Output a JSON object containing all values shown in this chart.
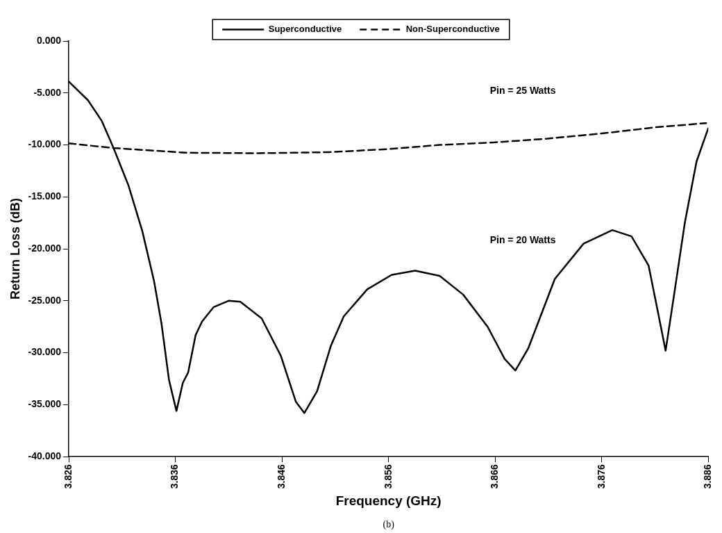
{
  "chart_data": {
    "type": "line",
    "xlabel": "Frequency (GHz)",
    "ylabel": "Return Loss (dB)",
    "xlim": [
      3.826,
      3.886
    ],
    "xticks": [
      3.826,
      3.836,
      3.846,
      3.856,
      3.866,
      3.876,
      3.886
    ],
    "ylim": [
      -40,
      0
    ],
    "yticks": [
      {
        "value": 0,
        "label": "0.000"
      },
      {
        "value": -5,
        "label": "-5.000"
      },
      {
        "value": -10,
        "label": "-10.000"
      },
      {
        "value": -15,
        "label": "-15.000"
      },
      {
        "value": -20,
        "label": "-20.000"
      },
      {
        "value": -25,
        "label": "-25.000"
      },
      {
        "value": -30,
        "label": "-30.000"
      },
      {
        "value": -35,
        "label": "-35.000"
      },
      {
        "value": -40,
        "label": "-40.000"
      }
    ],
    "grid": false,
    "legend": "top",
    "marker": "none",
    "series": [
      {
        "name": "Superconductive",
        "color": "#000000",
        "line_style": "solid",
        "x": [
          3.826,
          3.8278,
          3.8291,
          3.8302,
          3.8316,
          3.8329,
          3.834,
          3.8347,
          3.8354,
          3.8361,
          3.8367,
          3.8372,
          3.8379,
          3.8385,
          3.8396,
          3.841,
          3.8421,
          3.8441,
          3.8459,
          3.8473,
          3.8481,
          3.8493,
          3.8506,
          3.8518,
          3.854,
          3.8563,
          3.8585,
          3.8608,
          3.863,
          3.8653,
          3.8669,
          3.8679,
          3.8691,
          3.8716,
          3.8743,
          3.877,
          3.8788,
          3.8804,
          3.8813,
          3.882,
          3.8829,
          3.8838,
          3.8849,
          3.886
        ],
        "values": [
          -3.9,
          -5.7,
          -7.7,
          -10.3,
          -13.9,
          -18.3,
          -23.1,
          -27.2,
          -32.6,
          -35.6,
          -32.9,
          -31.9,
          -28.3,
          -27.0,
          -25.6,
          -25.0,
          -25.1,
          -26.7,
          -30.3,
          -34.7,
          -35.8,
          -33.7,
          -29.3,
          -26.5,
          -23.9,
          -22.5,
          -22.1,
          -22.6,
          -24.4,
          -27.5,
          -30.6,
          -31.7,
          -29.6,
          -22.9,
          -19.5,
          -18.2,
          -18.8,
          -21.6,
          -26.2,
          -29.8,
          -23.7,
          -17.5,
          -11.6,
          -8.4
        ]
      },
      {
        "name": "Non-Superconductive",
        "color": "#000000",
        "line_style": "dashed",
        "x": [
          3.826,
          3.8302,
          3.837,
          3.8437,
          3.8504,
          3.856,
          3.8608,
          3.866,
          3.8709,
          3.876,
          3.8811,
          3.8858
        ],
        "values": [
          -9.85,
          -10.3,
          -10.75,
          -10.8,
          -10.7,
          -10.4,
          -10.0,
          -9.75,
          -9.4,
          -8.9,
          -8.3,
          -7.9
        ]
      }
    ],
    "annotations": [
      "Pin = 25 Watts",
      "Pin = 20 Watts",
      "(b)"
    ]
  }
}
